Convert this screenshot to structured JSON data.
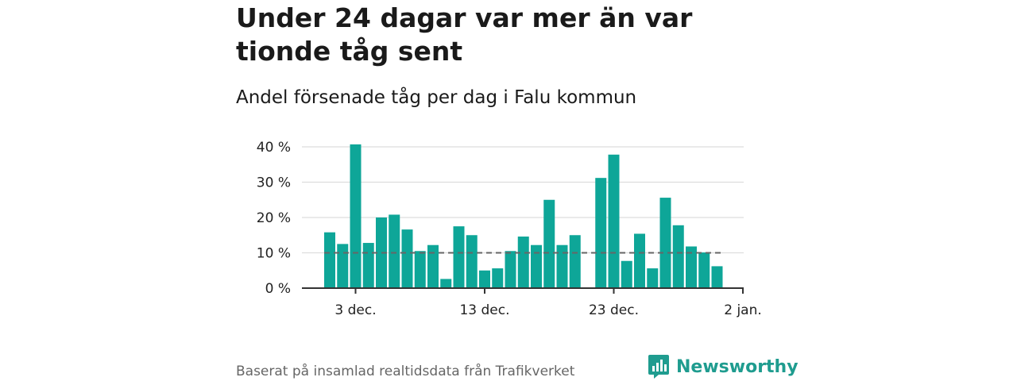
{
  "header": {
    "title": "Under 24 dagar var mer än var tionde tåg sent",
    "subtitle": "Andel försenade tåg per dag i Falu kommun"
  },
  "footer": {
    "source": "Baserat på insamlad realtidsdata från Trafikverket",
    "brand": "Newsworthy",
    "brand_icon": "newsworthy-logo-icon"
  },
  "colors": {
    "bar": "#0ea698",
    "reference_line": "#666666",
    "grid": "#dddddd",
    "axis": "#333333",
    "brand": "#1f9c8f"
  },
  "chart_data": {
    "type": "bar",
    "title": "Andel försenade tåg per dag i Falu kommun",
    "xlabel": "",
    "ylabel": "",
    "x_start": "2022-12-01",
    "categories": [
      "1 dec.",
      "2 dec.",
      "3 dec.",
      "4 dec.",
      "5 dec.",
      "6 dec.",
      "7 dec.",
      "8 dec.",
      "9 dec.",
      "10 dec.",
      "11 dec.",
      "12 dec.",
      "13 dec.",
      "14 dec.",
      "15 dec.",
      "16 dec.",
      "17 dec.",
      "18 dec.",
      "19 dec.",
      "20 dec.",
      "21 dec.",
      "22 dec.",
      "23 dec.",
      "24 dec.",
      "25 dec.",
      "26 dec.",
      "27 dec.",
      "28 dec.",
      "29 dec.",
      "30 dec.",
      "31 dec."
    ],
    "values": [
      15.8,
      12.5,
      40.7,
      12.8,
      20.0,
      20.8,
      16.6,
      10.5,
      12.2,
      2.6,
      17.5,
      15.0,
      5.0,
      5.6,
      10.5,
      14.6,
      12.2,
      25.0,
      12.2,
      15.0,
      null,
      31.2,
      37.8,
      7.7,
      15.4,
      5.6,
      25.6,
      17.8,
      11.8,
      10.1,
      6.2
    ],
    "reference_line": 10,
    "ylim": [
      0,
      40
    ],
    "y_ticks": [
      {
        "value": 0,
        "label": "0 %"
      },
      {
        "value": 10,
        "label": "10 %"
      },
      {
        "value": 20,
        "label": "20 %"
      },
      {
        "value": 30,
        "label": "30 %"
      },
      {
        "value": 40,
        "label": "40 %"
      }
    ],
    "x_ticks": [
      {
        "index": 2,
        "label": "3 dec."
      },
      {
        "index": 12,
        "label": "13 dec."
      },
      {
        "index": 22,
        "label": "23 dec."
      },
      {
        "index": 32,
        "label": "2 jan."
      }
    ],
    "grid": true
  }
}
